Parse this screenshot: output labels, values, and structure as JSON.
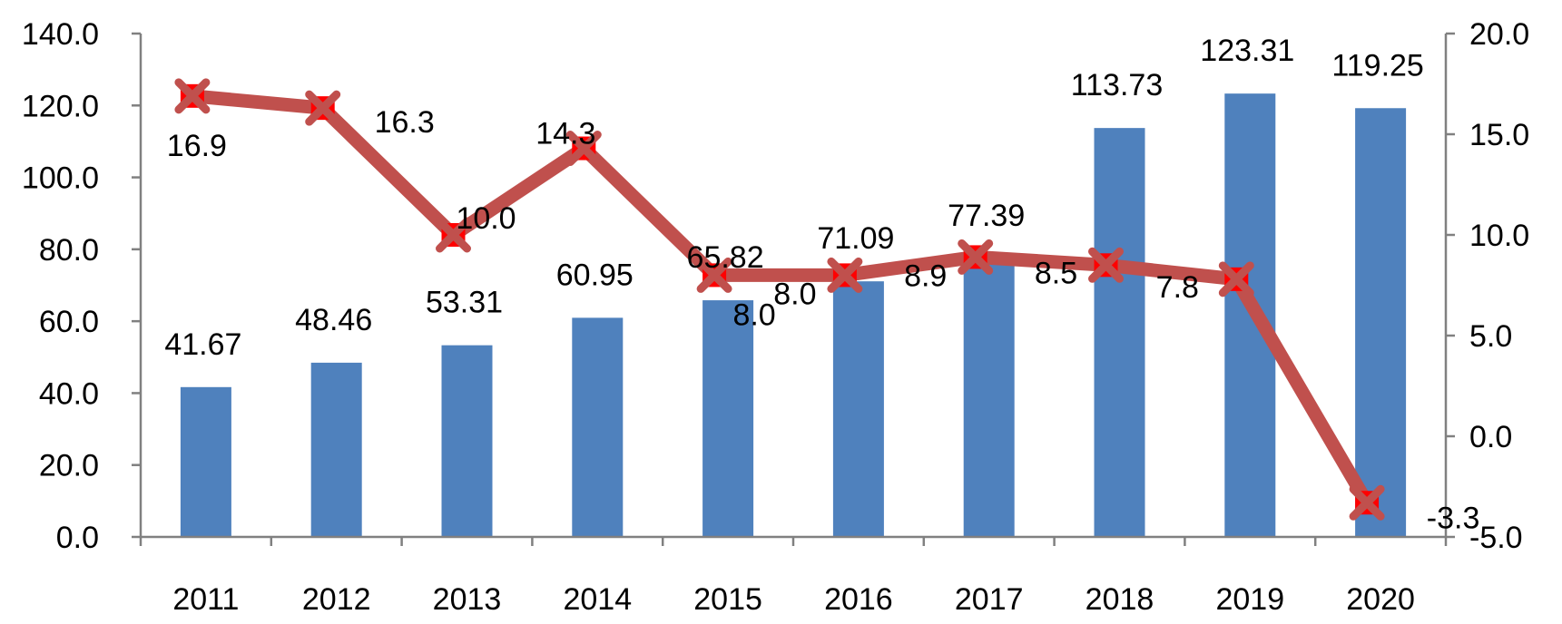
{
  "chart_data": {
    "type": "bar",
    "categories": [
      "2011",
      "2012",
      "2013",
      "2014",
      "2015",
      "2016",
      "2017",
      "2018",
      "2019",
      "2020"
    ],
    "series": [
      {
        "type": "bar",
        "axis": "left",
        "color": "#4F81BD",
        "values": [
          41.67,
          48.46,
          53.31,
          60.95,
          65.82,
          71.09,
          77.39,
          113.73,
          123.31,
          119.25
        ],
        "labels": [
          "41.67",
          "48.46",
          "53.31",
          "60.95",
          "65.82",
          "71.09",
          "77.39",
          "113.73",
          "123.31",
          "119.25"
        ]
      },
      {
        "type": "line",
        "axis": "right",
        "color": "#C0504D",
        "marker": "x",
        "marker_color": "#FF0000",
        "values": [
          16.9,
          16.3,
          10.0,
          14.3,
          8.0,
          8.0,
          8.9,
          8.5,
          7.8,
          -3.3
        ],
        "labels": [
          "16.9",
          "16.3",
          "10.0",
          "14.3",
          "8.0",
          "8.0",
          "8.9",
          "8.5",
          "7.8",
          "-3.3"
        ]
      }
    ],
    "y_left": {
      "range": [
        0,
        140
      ],
      "ticks": [
        0,
        20,
        40,
        60,
        80,
        100,
        120,
        140
      ],
      "tick_labels": [
        "0.0",
        "20.0",
        "40.0",
        "60.0",
        "80.0",
        "100.0",
        "120.0",
        "140.0"
      ]
    },
    "y_right": {
      "range": [
        -5,
        20
      ],
      "ticks": [
        -5,
        0,
        5,
        10,
        15,
        20
      ],
      "tick_labels": [
        "-5.0",
        "0.0",
        "5.0",
        "10.0",
        "15.0",
        "20.0"
      ]
    },
    "title": "",
    "xlabel": "",
    "ylabel": "",
    "grid": false,
    "legend": "none",
    "axis_color": "#808080"
  }
}
